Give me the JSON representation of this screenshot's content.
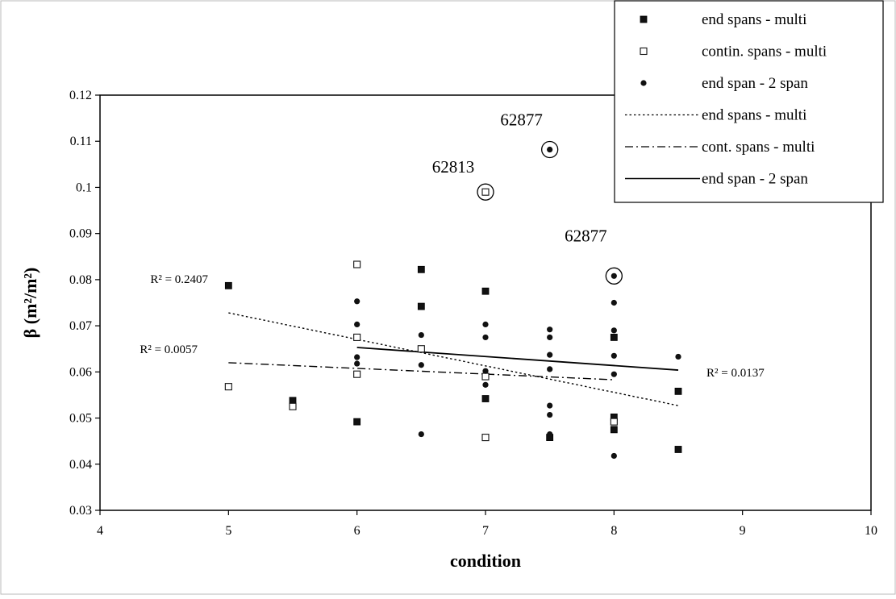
{
  "chart_data": {
    "type": "scatter",
    "xlabel": "condition",
    "ylabel": "β (m²/m²)",
    "xlim": [
      4,
      10
    ],
    "ylim": [
      0.03,
      0.12
    ],
    "x_ticks": [
      "4",
      "5",
      "6",
      "7",
      "8",
      "9",
      "10"
    ],
    "y_ticks": [
      "0.03",
      "0.04",
      "0.05",
      "0.06",
      "0.07",
      "0.08",
      "0.09",
      "0.1",
      "0.11",
      "0.12"
    ],
    "grid": false,
    "legend_position": "top-right",
    "series": [
      {
        "name": "end spans - multi",
        "marker": "filled-square",
        "points": [
          [
            5,
            0.0787
          ],
          [
            5.5,
            0.0538
          ],
          [
            6,
            0.0492
          ],
          [
            6.5,
            0.0822
          ],
          [
            6.5,
            0.0742
          ],
          [
            7,
            0.0775
          ],
          [
            7,
            0.0542
          ],
          [
            7.5,
            0.0458
          ],
          [
            8,
            0.0675
          ],
          [
            8,
            0.0502
          ],
          [
            8,
            0.0475
          ],
          [
            8.5,
            0.0558
          ],
          [
            8.5,
            0.0432
          ]
        ]
      },
      {
        "name": "contin. spans - multi",
        "marker": "open-square",
        "points": [
          [
            5,
            0.0568
          ],
          [
            5.5,
            0.0525
          ],
          [
            6,
            0.0833
          ],
          [
            6,
            0.0675
          ],
          [
            6,
            0.0595
          ],
          [
            6.5,
            0.065
          ],
          [
            7,
            0.099
          ],
          [
            7,
            0.059
          ],
          [
            7,
            0.0458
          ],
          [
            8,
            0.0492
          ]
        ]
      },
      {
        "name": "end span - 2 span",
        "marker": "filled-circle",
        "points": [
          [
            6,
            0.0753
          ],
          [
            6,
            0.0703
          ],
          [
            6,
            0.0632
          ],
          [
            6,
            0.0618
          ],
          [
            6.5,
            0.068
          ],
          [
            6.5,
            0.0615
          ],
          [
            6.5,
            0.0465
          ],
          [
            7,
            0.0703
          ],
          [
            7,
            0.0675
          ],
          [
            7,
            0.0602
          ],
          [
            7,
            0.0572
          ],
          [
            7.5,
            0.1082
          ],
          [
            7.5,
            0.0692
          ],
          [
            7.5,
            0.0675
          ],
          [
            7.5,
            0.0637
          ],
          [
            7.5,
            0.0606
          ],
          [
            7.5,
            0.0527
          ],
          [
            7.5,
            0.0507
          ],
          [
            7.5,
            0.0465
          ],
          [
            8,
            0.0808
          ],
          [
            8,
            0.075
          ],
          [
            8,
            0.069
          ],
          [
            8,
            0.0635
          ],
          [
            8,
            0.0595
          ],
          [
            8,
            0.0418
          ],
          [
            8.5,
            0.0633
          ]
        ]
      }
    ],
    "trendlines": [
      {
        "name": "end spans - multi",
        "style": "dotted",
        "x": [
          5,
          8.5
        ],
        "y": [
          0.0728,
          0.0527
        ],
        "r2_label": "R² = 0.2407"
      },
      {
        "name": "cont. spans - multi",
        "style": "dash-dot",
        "x": [
          5,
          8
        ],
        "y": [
          0.062,
          0.0583
        ],
        "r2_label": "R² = 0.0057"
      },
      {
        "name": "end span - 2 span",
        "style": "solid",
        "x": [
          6,
          8.5
        ],
        "y": [
          0.0653,
          0.0604
        ],
        "r2_label": "R² = 0.0137"
      }
    ],
    "highlighted_points": [
      {
        "label": "62877",
        "x": 7.5,
        "y": 0.1082
      },
      {
        "label": "62813",
        "x": 7,
        "y": 0.099
      },
      {
        "label": "62877",
        "x": 8,
        "y": 0.0808
      }
    ]
  }
}
